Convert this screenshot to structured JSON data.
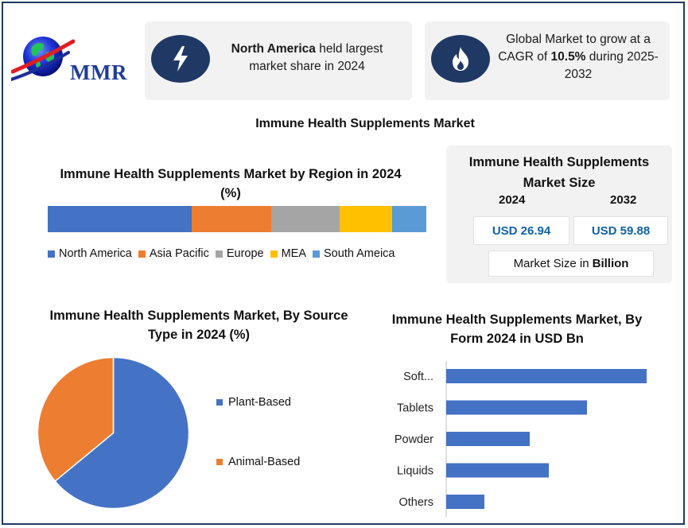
{
  "brand": {
    "logo_text": "MMR"
  },
  "highlights": [
    {
      "icon": "lightning-icon",
      "bold": "North America",
      "text": " held largest market share in 2024"
    },
    {
      "icon": "flame-icon",
      "pre": "Global Market to grow at a CAGR of ",
      "bold": "10.5%",
      "post": " during 2025-2032"
    }
  ],
  "main_title": "Immune Health Supplements Market",
  "market_size": {
    "title": "Immune Health Supplements Market Size",
    "years": [
      "2024",
      "2032"
    ],
    "values": [
      "USD 26.94",
      "USD 59.88"
    ],
    "unit_prefix": "Market Size in",
    "unit_bold": "Billion"
  },
  "colors": {
    "navy": "#1f3864",
    "blue": "#4472c4",
    "orange": "#ed7d31",
    "gray": "#a5a5a5",
    "gold": "#ffc000",
    "light_blue": "#5b9bd5",
    "value_text": "#1060a8"
  },
  "chart_data": [
    {
      "type": "bar",
      "orientation": "stacked-horizontal",
      "title": "Immune Health Supplements Market by Region in 2024 (%)",
      "categories": [
        "North America",
        "Asia Pacific",
        "Europe",
        "MEA",
        "South Ameica"
      ],
      "values": [
        38,
        21,
        18,
        14,
        9
      ],
      "colors": [
        "#4472c4",
        "#ed7d31",
        "#a5a5a5",
        "#ffc000",
        "#5b9bd5"
      ],
      "legend": "bottom"
    },
    {
      "type": "pie",
      "title": "Immune Health Supplements Market, By Source Type in 2024 (%)",
      "categories": [
        "Plant-Based",
        "Animal-Based"
      ],
      "values": [
        64,
        36
      ],
      "colors": [
        "#4472c4",
        "#ed7d31"
      ],
      "legend": "right"
    },
    {
      "type": "bar",
      "orientation": "horizontal",
      "title": "Immune Health Supplements Market, By Form 2024 in USD Bn",
      "categories": [
        "Soft...",
        "Tablets",
        "Powder",
        "Liquids",
        "Others"
      ],
      "values": [
        8.4,
        5.9,
        3.5,
        4.3,
        1.6
      ],
      "xlim": [
        0,
        9
      ],
      "color": "#4472c4",
      "grid": false
    }
  ]
}
